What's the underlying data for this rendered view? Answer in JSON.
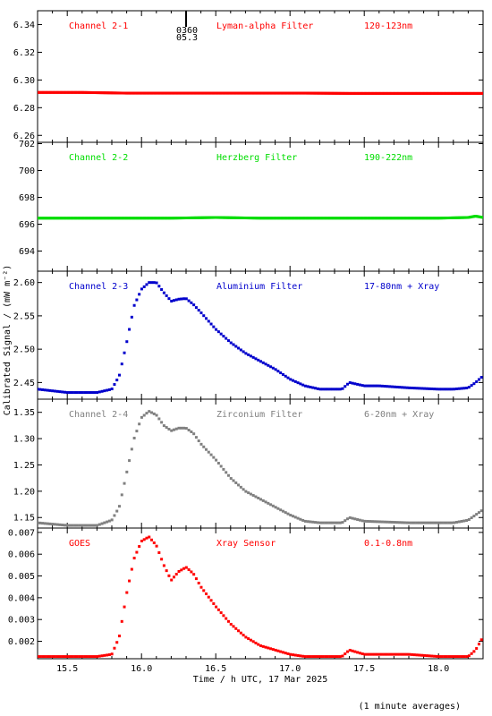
{
  "chart_data": {
    "type": "scatter",
    "xlabel": "Time / h UTC, 17 Mar 2025",
    "ylabel": "Calibrated Signal / (mW m⁻²)",
    "footnote": "(1 minute averages)",
    "xlim": [
      15.3,
      18.3
    ],
    "xticks": [
      "15.5",
      "16.0",
      "16.5",
      "17.0",
      "17.5",
      "18.0"
    ],
    "marker": {
      "label_top": "0360",
      "label_bottom": "05.3",
      "x": 16.3
    },
    "panels": [
      {
        "channel": "Channel 2-1",
        "filter": "Lyman-alpha Filter",
        "band": "120-123nm",
        "color": "#ff0000",
        "ylim": [
          6.255,
          6.35
        ],
        "yticks": [
          "6.34",
          "6.32",
          "6.30",
          "6.28",
          "6.26"
        ],
        "x": [
          15.3,
          15.6,
          15.9,
          16.2,
          16.5,
          16.8,
          17.1,
          17.4,
          17.7,
          18.0,
          18.3
        ],
        "y": [
          6.291,
          6.291,
          6.2905,
          6.2905,
          6.2905,
          6.2905,
          6.2905,
          6.2903,
          6.2903,
          6.2903,
          6.2903
        ]
      },
      {
        "channel": "Channel 2-2",
        "filter": "Herzberg Filter",
        "band": "190-222nm",
        "color": "#00dd00",
        "ylim": [
          692.5,
          702.1
        ],
        "yticks": [
          "702",
          "700",
          "698",
          "696",
          "694"
        ],
        "x": [
          15.3,
          15.6,
          15.9,
          16.2,
          16.5,
          16.8,
          17.1,
          17.4,
          17.7,
          18.0,
          18.2,
          18.25,
          18.3
        ],
        "y": [
          696.45,
          696.45,
          696.45,
          696.45,
          696.5,
          696.45,
          696.45,
          696.45,
          696.45,
          696.45,
          696.5,
          696.6,
          696.5
        ]
      },
      {
        "channel": "Channel 2-3",
        "filter": "Aluminium Filter",
        "band": "17-80nm + Xray",
        "color": "#0000cc",
        "ylim": [
          2.425,
          2.617
        ],
        "yticks": [
          "2.60",
          "2.55",
          "2.50",
          "2.45"
        ],
        "x": [
          15.3,
          15.5,
          15.7,
          15.8,
          15.85,
          15.9,
          15.95,
          16.0,
          16.05,
          16.1,
          16.15,
          16.2,
          16.25,
          16.3,
          16.35,
          16.4,
          16.5,
          16.6,
          16.7,
          16.8,
          16.9,
          17.0,
          17.1,
          17.2,
          17.35,
          17.4,
          17.5,
          17.6,
          17.8,
          18.0,
          18.1,
          18.2,
          18.25,
          18.3
        ],
        "y": [
          2.44,
          2.435,
          2.435,
          2.44,
          2.46,
          2.51,
          2.565,
          2.59,
          2.6,
          2.6,
          2.585,
          2.572,
          2.575,
          2.576,
          2.567,
          2.555,
          2.53,
          2.51,
          2.494,
          2.482,
          2.47,
          2.455,
          2.445,
          2.44,
          2.44,
          2.45,
          2.445,
          2.445,
          2.442,
          2.44,
          2.44,
          2.442,
          2.45,
          2.46
        ]
      },
      {
        "channel": "Channel 2-4",
        "filter": "Zirconium Filter",
        "band": "6-20nm + Xray",
        "color": "#808080",
        "ylim": [
          1.13,
          1.375
        ],
        "yticks": [
          "1.35",
          "1.30",
          "1.25",
          "1.20",
          "1.15"
        ],
        "x": [
          15.3,
          15.5,
          15.7,
          15.8,
          15.85,
          15.9,
          15.95,
          16.0,
          16.05,
          16.1,
          16.15,
          16.2,
          16.25,
          16.3,
          16.35,
          16.4,
          16.5,
          16.6,
          16.7,
          16.8,
          16.9,
          17.0,
          17.1,
          17.2,
          17.35,
          17.4,
          17.5,
          17.6,
          17.8,
          18.0,
          18.1,
          18.2,
          18.25,
          18.3
        ],
        "y": [
          1.14,
          1.135,
          1.135,
          1.145,
          1.17,
          1.235,
          1.3,
          1.34,
          1.352,
          1.345,
          1.325,
          1.315,
          1.32,
          1.32,
          1.31,
          1.29,
          1.26,
          1.225,
          1.2,
          1.185,
          1.17,
          1.155,
          1.143,
          1.14,
          1.14,
          1.15,
          1.143,
          1.142,
          1.14,
          1.14,
          1.14,
          1.145,
          1.155,
          1.165
        ]
      },
      {
        "channel": "GOES",
        "filter": "Xray Sensor",
        "band": "0.1-0.8nm",
        "color": "#ff0000",
        "ylim": [
          0.0012,
          0.0072
        ],
        "yticks": [
          "0.007",
          "0.006",
          "0.005",
          "0.004",
          "0.003",
          "0.002"
        ],
        "x": [
          15.3,
          15.5,
          15.7,
          15.8,
          15.85,
          15.9,
          15.95,
          16.0,
          16.05,
          16.1,
          16.15,
          16.2,
          16.25,
          16.3,
          16.35,
          16.4,
          16.5,
          16.6,
          16.7,
          16.8,
          16.9,
          17.0,
          17.1,
          17.2,
          17.35,
          17.4,
          17.5,
          17.6,
          17.8,
          18.0,
          18.1,
          18.2,
          18.25,
          18.3
        ],
        "y": [
          0.0013,
          0.0013,
          0.0013,
          0.0014,
          0.0022,
          0.0042,
          0.0058,
          0.0066,
          0.0068,
          0.0064,
          0.0055,
          0.0048,
          0.0052,
          0.0054,
          0.0051,
          0.0045,
          0.0036,
          0.0028,
          0.0022,
          0.0018,
          0.0016,
          0.0014,
          0.0013,
          0.0013,
          0.0013,
          0.0016,
          0.0014,
          0.0014,
          0.0014,
          0.0013,
          0.0013,
          0.0013,
          0.0016,
          0.0022
        ]
      }
    ]
  }
}
